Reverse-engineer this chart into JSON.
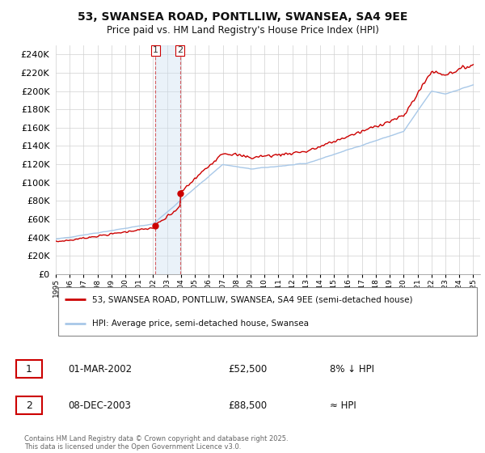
{
  "title": "53, SWANSEA ROAD, PONTLLIW, SWANSEA, SA4 9EE",
  "subtitle": "Price paid vs. HM Land Registry's House Price Index (HPI)",
  "legend_line1": "53, SWANSEA ROAD, PONTLLIW, SWANSEA, SA4 9EE (semi-detached house)",
  "legend_line2": "HPI: Average price, semi-detached house, Swansea",
  "transaction1_date": "01-MAR-2002",
  "transaction1_price": "£52,500",
  "transaction1_hpi": "8% ↓ HPI",
  "transaction2_date": "08-DEC-2003",
  "transaction2_price": "£88,500",
  "transaction2_hpi": "≈ HPI",
  "footer": "Contains HM Land Registry data © Crown copyright and database right 2025.\nThis data is licensed under the Open Government Licence v3.0.",
  "ylim": [
    0,
    250000
  ],
  "hpi_color": "#a8c8e8",
  "price_color": "#cc0000",
  "vline_color": "#cc0000",
  "transaction1_x": 2002.17,
  "transaction2_x": 2003.93,
  "transaction1_y": 52500,
  "transaction2_y": 88500,
  "xmin": 1995,
  "xmax": 2025.5
}
